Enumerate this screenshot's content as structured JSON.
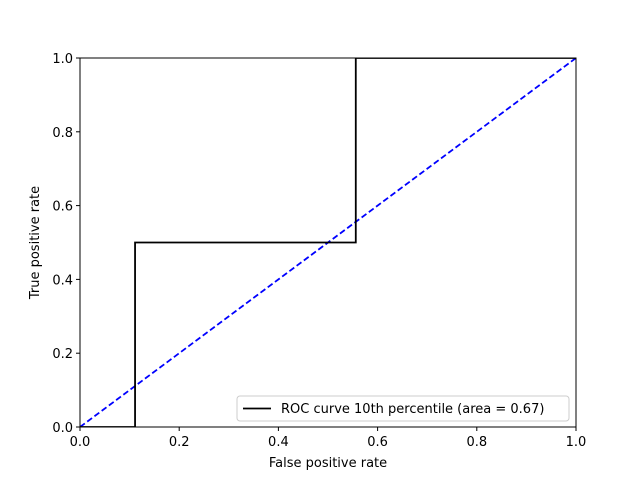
{
  "chart_data": {
    "type": "line",
    "title": "",
    "xlabel": "False positive rate",
    "ylabel": "True positive rate",
    "xlim": [
      0,
      1
    ],
    "ylim": [
      0,
      1
    ],
    "xticks": [
      0,
      0.2,
      0.4,
      0.6,
      0.8,
      1
    ],
    "xtick_labels": [
      "0.0",
      "0.2",
      "0.4",
      "0.6",
      "0.8",
      "1.0"
    ],
    "yticks": [
      0,
      0.2,
      0.4,
      0.6,
      0.8,
      1
    ],
    "ytick_labels": [
      "0.0",
      "0.2",
      "0.4",
      "0.6",
      "0.8",
      "1.0"
    ],
    "grid": false,
    "legend_position": "lower-right",
    "series": [
      {
        "name": "ROC curve 10th percentile (area = 0.67)",
        "color": "#000000",
        "style": "solid",
        "x": [
          0,
          0.111,
          0.111,
          0.556,
          0.556,
          1
        ],
        "y": [
          0,
          0,
          0.5,
          0.5,
          1,
          1
        ]
      },
      {
        "color": "#0000ff",
        "style": "dashed",
        "x": [
          0,
          1
        ],
        "y": [
          0,
          1
        ]
      }
    ]
  }
}
